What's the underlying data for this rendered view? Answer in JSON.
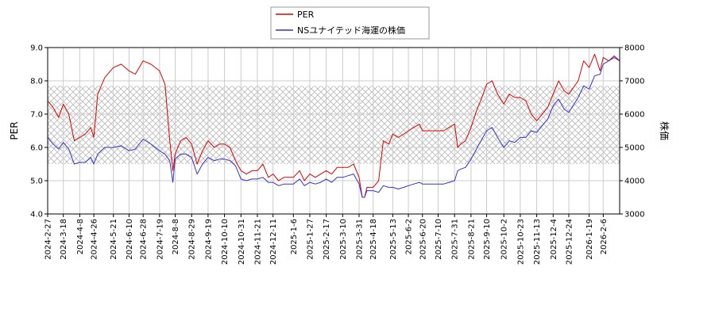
{
  "chart_data": {
    "type": "line",
    "legend": {
      "placement": "top-center",
      "entries": [
        "PER",
        "NSユナイテッド海運の株価"
      ]
    },
    "axes": {
      "left": {
        "label": "PER",
        "ylim": [
          4.0,
          9.0
        ],
        "ticks": [
          "4.0",
          "5.0",
          "6.0",
          "7.0",
          "8.0",
          "9.0"
        ]
      },
      "right": {
        "label": "株価",
        "ylim": [
          3000,
          8000
        ],
        "ticks": [
          "3000",
          "4000",
          "5000",
          "6000",
          "7000",
          "8000"
        ]
      },
      "x": {
        "range": [
          "2024-02-27",
          "2026-02-27"
        ],
        "ticks": [
          "2024-2-27",
          "2024-3-18",
          "2024-4-8",
          "2024-4-26",
          "2024-5-21",
          "2024-6-10",
          "2024-6-28",
          "2024-7-19",
          "2024-8-8",
          "2024-8-29",
          "2024-9-19",
          "2024-10-10",
          "2024-10-31",
          "2024-11-21",
          "2024-12-11",
          "2025-1-6",
          "2025-1-27",
          "2025-2-17",
          "2025-3-10",
          "2025-3-31",
          "2025-4-18",
          "2025-5-13",
          "2025-6-2",
          "2025-6-20",
          "2025-7-10",
          "2025-7-31",
          "2025-8-21",
          "2025-9-10",
          "2025-10-2",
          "2025-10-23",
          "2025-11-13",
          "2025-12-4",
          "2025-12-24",
          "2026-1-19",
          "2026-2-6"
        ]
      }
    },
    "grid": true,
    "shaded_band": {
      "axis": "left",
      "from": 5.5,
      "to": 7.85,
      "pattern": "crosshatch"
    },
    "series": [
      {
        "name": "PER",
        "axis": "left",
        "color": "#dd0000",
        "x": [
          "2024-02-27",
          "2024-03-05",
          "2024-03-12",
          "2024-03-18",
          "2024-03-25",
          "2024-04-01",
          "2024-04-08",
          "2024-04-15",
          "2024-04-22",
          "2024-04-26",
          "2024-05-01",
          "2024-05-10",
          "2024-05-21",
          "2024-05-31",
          "2024-06-10",
          "2024-06-18",
          "2024-06-28",
          "2024-07-08",
          "2024-07-19",
          "2024-07-26",
          "2024-08-01",
          "2024-08-05",
          "2024-08-08",
          "2024-08-15",
          "2024-08-22",
          "2024-08-29",
          "2024-09-05",
          "2024-09-12",
          "2024-09-19",
          "2024-09-27",
          "2024-10-04",
          "2024-10-10",
          "2024-10-17",
          "2024-10-24",
          "2024-10-31",
          "2024-11-07",
          "2024-11-14",
          "2024-11-21",
          "2024-11-28",
          "2024-12-05",
          "2024-12-11",
          "2024-12-18",
          "2024-12-25",
          "2025-01-06",
          "2025-01-14",
          "2025-01-20",
          "2025-01-27",
          "2025-02-03",
          "2025-02-10",
          "2025-02-17",
          "2025-02-24",
          "2025-03-03",
          "2025-03-10",
          "2025-03-17",
          "2025-03-24",
          "2025-03-31",
          "2025-04-04",
          "2025-04-07",
          "2025-04-10",
          "2025-04-18",
          "2025-04-25",
          "2025-05-01",
          "2025-05-08",
          "2025-05-13",
          "2025-05-20",
          "2025-05-27",
          "2025-06-02",
          "2025-06-09",
          "2025-06-16",
          "2025-06-20",
          "2025-06-27",
          "2025-07-03",
          "2025-07-10",
          "2025-07-17",
          "2025-07-24",
          "2025-07-31",
          "2025-08-04",
          "2025-08-08",
          "2025-08-14",
          "2025-08-21",
          "2025-08-28",
          "2025-09-04",
          "2025-09-10",
          "2025-09-17",
          "2025-09-24",
          "2025-10-02",
          "2025-10-09",
          "2025-10-16",
          "2025-10-23",
          "2025-10-30",
          "2025-11-06",
          "2025-11-13",
          "2025-11-20",
          "2025-11-27",
          "2025-12-04",
          "2025-12-11",
          "2025-12-18",
          "2025-12-24",
          "2026-01-05",
          "2026-01-12",
          "2026-01-19",
          "2026-01-26",
          "2026-02-02",
          "2026-02-06",
          "2026-02-13",
          "2026-02-20",
          "2026-02-27"
        ],
        "values": [
          7.4,
          7.2,
          6.9,
          7.3,
          7.0,
          6.2,
          6.3,
          6.4,
          6.6,
          6.3,
          7.6,
          8.1,
          8.4,
          8.5,
          8.3,
          8.2,
          8.6,
          8.5,
          8.3,
          7.9,
          6.2,
          5.3,
          5.8,
          6.2,
          6.3,
          6.1,
          5.5,
          5.9,
          6.2,
          6.0,
          6.1,
          6.1,
          6.0,
          5.6,
          5.3,
          5.2,
          5.3,
          5.3,
          5.5,
          5.1,
          5.2,
          5.0,
          5.1,
          5.1,
          5.3,
          5.0,
          5.2,
          5.1,
          5.2,
          5.3,
          5.2,
          5.4,
          5.4,
          5.4,
          5.5,
          5.1,
          4.5,
          4.5,
          4.8,
          4.8,
          5.0,
          6.2,
          6.1,
          6.4,
          6.3,
          6.4,
          6.5,
          6.6,
          6.7,
          6.5,
          6.5,
          6.5,
          6.5,
          6.5,
          6.6,
          6.7,
          6.0,
          6.1,
          6.2,
          6.6,
          7.1,
          7.5,
          7.9,
          8.0,
          7.6,
          7.3,
          7.6,
          7.5,
          7.5,
          7.4,
          7.0,
          6.8,
          7.0,
          7.2,
          7.6,
          8.0,
          7.7,
          7.6,
          8.0,
          8.6,
          8.4,
          8.8,
          8.3,
          8.7,
          8.6,
          8.7,
          8.6
        ]
      },
      {
        "name": "NSユナイテッド海運の株価",
        "axis": "right",
        "color": "#3333cc",
        "x": [
          "2024-02-27",
          "2024-03-05",
          "2024-03-12",
          "2024-03-18",
          "2024-03-25",
          "2024-04-01",
          "2024-04-08",
          "2024-04-15",
          "2024-04-22",
          "2024-04-26",
          "2024-05-01",
          "2024-05-10",
          "2024-05-21",
          "2024-05-31",
          "2024-06-10",
          "2024-06-18",
          "2024-06-28",
          "2024-07-08",
          "2024-07-19",
          "2024-07-26",
          "2024-08-01",
          "2024-08-05",
          "2024-08-08",
          "2024-08-15",
          "2024-08-22",
          "2024-08-29",
          "2024-09-05",
          "2024-09-12",
          "2024-09-19",
          "2024-09-27",
          "2024-10-04",
          "2024-10-10",
          "2024-10-17",
          "2024-10-24",
          "2024-10-31",
          "2024-11-07",
          "2024-11-14",
          "2024-11-21",
          "2024-11-28",
          "2024-12-05",
          "2024-12-11",
          "2024-12-18",
          "2024-12-25",
          "2025-01-06",
          "2025-01-14",
          "2025-01-20",
          "2025-01-27",
          "2025-02-03",
          "2025-02-10",
          "2025-02-17",
          "2025-02-24",
          "2025-03-03",
          "2025-03-10",
          "2025-03-17",
          "2025-03-24",
          "2025-03-31",
          "2025-04-04",
          "2025-04-07",
          "2025-04-10",
          "2025-04-18",
          "2025-04-25",
          "2025-05-01",
          "2025-05-08",
          "2025-05-13",
          "2025-05-20",
          "2025-05-27",
          "2025-06-02",
          "2025-06-09",
          "2025-06-16",
          "2025-06-20",
          "2025-06-27",
          "2025-07-03",
          "2025-07-10",
          "2025-07-17",
          "2025-07-24",
          "2025-07-31",
          "2025-08-04",
          "2025-08-08",
          "2025-08-14",
          "2025-08-21",
          "2025-08-28",
          "2025-09-04",
          "2025-09-10",
          "2025-09-17",
          "2025-09-24",
          "2025-10-02",
          "2025-10-09",
          "2025-10-16",
          "2025-10-23",
          "2025-10-30",
          "2025-11-06",
          "2025-11-13",
          "2025-11-20",
          "2025-11-27",
          "2025-12-04",
          "2025-12-11",
          "2025-12-18",
          "2025-12-24",
          "2026-01-05",
          "2026-01-12",
          "2026-01-19",
          "2026-01-26",
          "2026-02-02",
          "2026-02-06",
          "2026-02-13",
          "2026-02-20",
          "2026-02-27"
        ],
        "values": [
          5300,
          5100,
          4950,
          5150,
          4950,
          4500,
          4550,
          4550,
          4700,
          4500,
          4800,
          5000,
          5000,
          5050,
          4900,
          4950,
          5250,
          5100,
          4900,
          4800,
          4600,
          3950,
          4650,
          4800,
          4800,
          4700,
          4200,
          4500,
          4700,
          4600,
          4650,
          4650,
          4600,
          4450,
          4050,
          4000,
          4050,
          4050,
          4100,
          3950,
          3950,
          3850,
          3900,
          3900,
          4050,
          3850,
          3950,
          3900,
          3950,
          4050,
          3950,
          4100,
          4100,
          4150,
          4200,
          3900,
          3500,
          3500,
          3700,
          3700,
          3650,
          3850,
          3800,
          3800,
          3750,
          3800,
          3850,
          3900,
          3950,
          3900,
          3900,
          3900,
          3900,
          3900,
          3950,
          4000,
          4300,
          4350,
          4400,
          4650,
          4950,
          5250,
          5500,
          5600,
          5300,
          5000,
          5200,
          5150,
          5300,
          5300,
          5500,
          5450,
          5650,
          5850,
          6250,
          6450,
          6150,
          6050,
          6500,
          6850,
          6750,
          7150,
          7200,
          7500,
          7600,
          7750,
          7600
        ]
      }
    ]
  }
}
